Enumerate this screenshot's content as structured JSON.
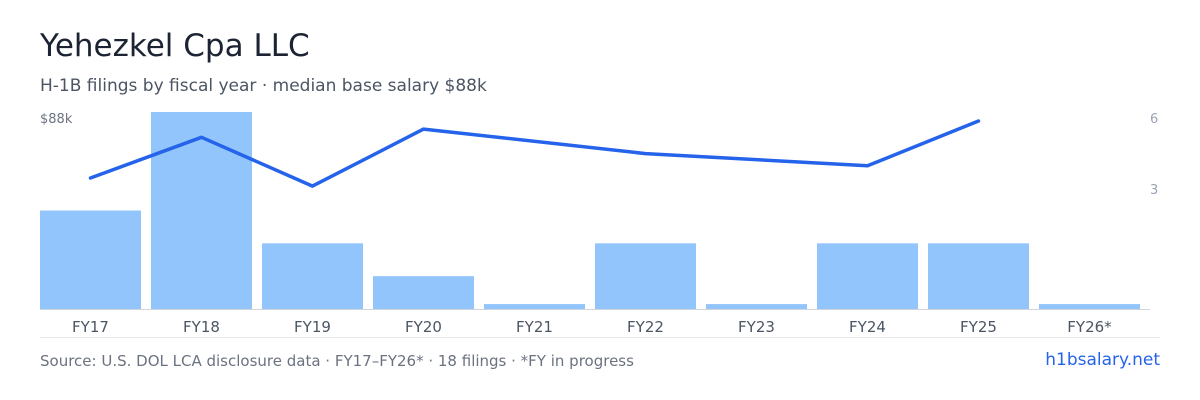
{
  "header": {
    "title": "Yehezkel Cpa LLC",
    "subtitle": "H-1B filings by fiscal year · median base salary $88k"
  },
  "footer": {
    "source": "Source: U.S. DOL LCA disclosure data · FY17–FY26* · 18 filings · *FY in progress",
    "brand": "h1bsalary.net"
  },
  "colors": {
    "bar": "#93c5fd",
    "line": "#2563eb",
    "axis": "#d1d5db"
  },
  "chart_data": {
    "type": "bar+line",
    "categories": [
      "FY17",
      "FY18",
      "FY19",
      "FY20",
      "FY21",
      "FY22",
      "FY23",
      "FY24",
      "FY25",
      "FY26*"
    ],
    "series": [
      {
        "type": "bar",
        "axis": "right",
        "values": [
          3,
          6,
          2,
          1,
          0.15,
          2,
          0.15,
          2,
          2,
          0.15
        ]
      },
      {
        "type": "line",
        "axis": "left",
        "values": [
          77,
          87,
          75,
          89,
          null,
          83,
          null,
          80,
          91,
          null
        ]
      }
    ],
    "left_axis": {
      "label": "$88k",
      "range": [
        0,
        88
      ]
    },
    "right_axis": {
      "ticks": [
        "6",
        "3"
      ],
      "range": [
        0,
        6
      ]
    },
    "legend": "none",
    "grid": false
  }
}
